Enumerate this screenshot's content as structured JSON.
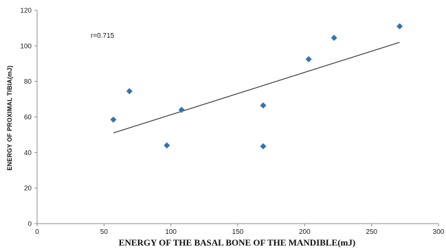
{
  "chart_data": {
    "type": "scatter",
    "title": "",
    "xlabel": "ENERGY OF THE BASAL BONE OF THE MANDIBLE(mJ)",
    "ylabel": "ENERGY OF PROXIMAL TIBIA(mJ)",
    "xlim": [
      0,
      300
    ],
    "ylim": [
      0,
      120
    ],
    "x_ticks": [
      "0",
      "50",
      "100",
      "150",
      "200",
      "250",
      "300"
    ],
    "y_ticks": [
      "0",
      "20",
      "40",
      "60",
      "80",
      "100",
      "120"
    ],
    "grid": false,
    "legend": "none",
    "annotation": "r=0.715",
    "series": [
      {
        "points": [
          {
            "x": 57,
            "y": 58.5
          },
          {
            "x": 69,
            "y": 74.5
          },
          {
            "x": 97,
            "y": 44
          },
          {
            "x": 108,
            "y": 64
          },
          {
            "x": 169,
            "y": 66.5
          },
          {
            "x": 169,
            "y": 43.5
          },
          {
            "x": 203,
            "y": 92.5
          },
          {
            "x": 222,
            "y": 104.5
          },
          {
            "x": 271,
            "y": 111
          }
        ],
        "color": "#2e75b6",
        "marker": "diamond"
      }
    ],
    "trendline": {
      "type": "linear",
      "from": {
        "x": 57,
        "y": 51
      },
      "to": {
        "x": 271,
        "y": 102
      },
      "color": "#333333"
    }
  }
}
